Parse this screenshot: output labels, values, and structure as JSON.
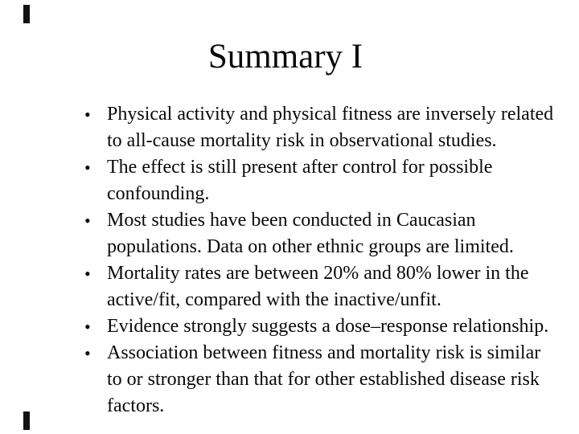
{
  "title": "Summary I",
  "bullet_char": "•",
  "bullets": [
    "Physical activity and physical fitness are inversely related\nto all-cause mortality risk in observational studies.",
    "The effect is still present after control for possible\nconfounding.",
    "Most studies have been conducted in Caucasian\npopulations. Data on other ethnic groups are limited.",
    "Mortality rates are between 20% and 80% lower in the\nactive/fit, compared with the inactive/unfit.",
    "Evidence strongly suggests a dose–response relationship.",
    "Association between fitness and mortality risk is similar\nto or stronger than that for other established disease risk\nfactors."
  ],
  "colors": {
    "background": "#ffffff",
    "text": "#0a0a0a"
  }
}
